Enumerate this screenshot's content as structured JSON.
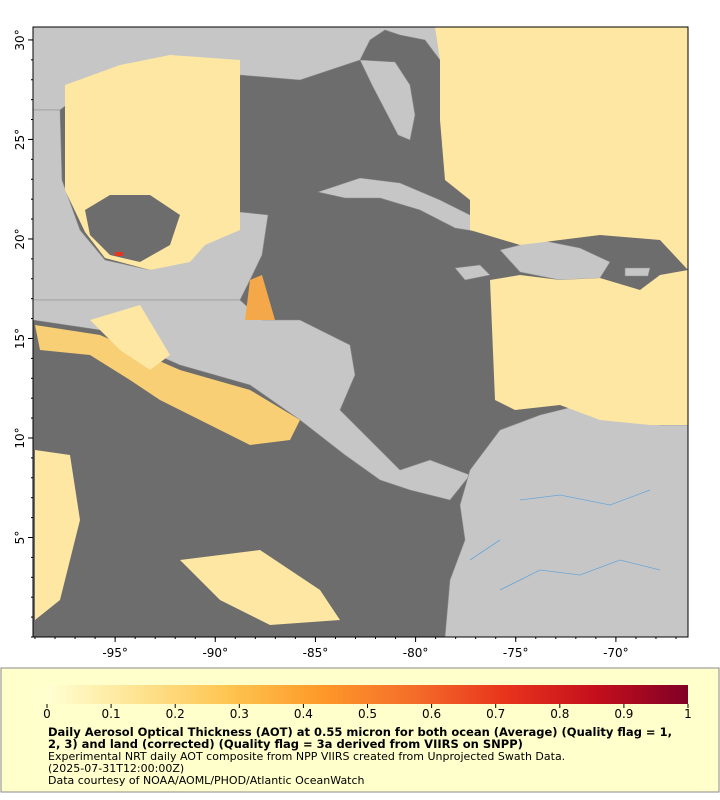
{
  "map": {
    "xlim": [
      -99.1,
      -66.4
    ],
    "ylim": [
      0,
      30.65
    ],
    "xticks": [
      {
        "value": -95,
        "label": "-95°"
      },
      {
        "value": -90,
        "label": "-90°"
      },
      {
        "value": -85,
        "label": "-85°"
      },
      {
        "value": -80,
        "label": "-80°"
      },
      {
        "value": -75,
        "label": "-75°"
      },
      {
        "value": -70,
        "label": "-70°"
      }
    ],
    "yticks": [
      {
        "value": 5,
        "label": "5°"
      },
      {
        "value": 10,
        "label": "10°"
      },
      {
        "value": 15,
        "label": "15°"
      },
      {
        "value": 20,
        "label": "20°"
      },
      {
        "value": 25,
        "label": "25°"
      },
      {
        "value": 30,
        "label": "30°"
      }
    ]
  },
  "colorbar": {
    "range": [
      0,
      1
    ],
    "ticks": [
      0,
      0.1,
      0.2,
      0.3,
      0.4,
      0.5,
      0.6,
      0.7,
      0.8,
      0.9,
      1
    ],
    "colors": [
      "#ffffd4",
      "#fee391",
      "#fec44f",
      "#fe9929",
      "#f46d2a",
      "#e8341c",
      "#c40f1c",
      "#800026"
    ]
  },
  "caption": {
    "title_lines": [
      "Daily Aerosol Optical Thickness (AOT) at 0.55 micron for both ocean (Average) (Quality flag = 1,",
      "2, 3) and land (corrected) (Quality flag = 3a derived from VIIRS on SNPP)"
    ],
    "lines": [
      "Experimental NRT daily AOT composite from NPP VIIRS created from Unprojected Swath Data.",
      "(2025-07-31T12:00:00Z)",
      "Data courtesy of NOAA/AOML/PHOD/Atlantic OceanWatch"
    ]
  }
}
